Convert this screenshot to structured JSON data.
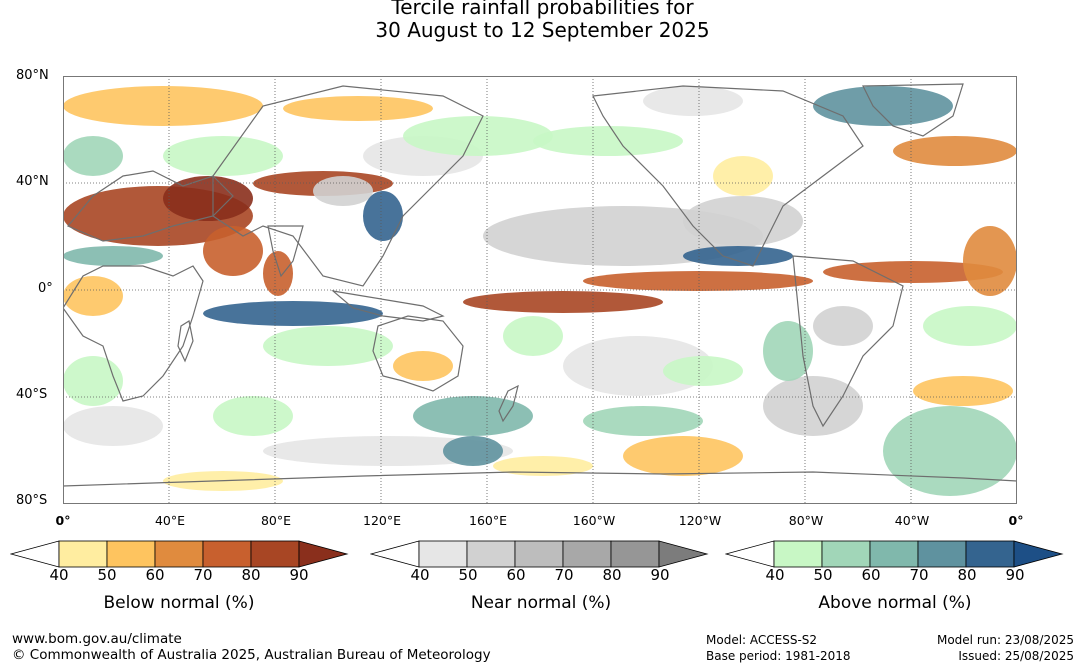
{
  "title": {
    "line1": "Tercile rainfall probabilities for",
    "line2": "30 August to 12 September 2025"
  },
  "map": {
    "lat_labels": [
      "80°N",
      "40°N",
      "0°",
      "40°S",
      "80°S"
    ],
    "lon_labels": [
      "0°",
      "40°E",
      "80°E",
      "120°E",
      "160°E",
      "160°W",
      "120°W",
      "80°W",
      "40°W",
      "0°"
    ],
    "graticule": "dotted every 40°",
    "notes": "coastlines in grey, probability shading over global equirectangular map"
  },
  "legend": {
    "below": {
      "name": "Below normal (%)",
      "ticks": [
        "40",
        "50",
        "60",
        "70",
        "80",
        "90"
      ],
      "colors": [
        "#ffffff",
        "#ffeda0",
        "#fec45f",
        "#e08b3e",
        "#c8602e",
        "#a84624",
        "#8a2f1c"
      ]
    },
    "near": {
      "name": "Near normal (%)",
      "ticks": [
        "40",
        "50",
        "60",
        "70",
        "80",
        "90"
      ],
      "colors": [
        "#ffffff",
        "#e6e6e6",
        "#d1d1d1",
        "#bdbdbd",
        "#a8a8a8",
        "#969696",
        "#7c7c7c"
      ]
    },
    "above": {
      "name": "Above normal (%)",
      "ticks": [
        "40",
        "50",
        "60",
        "70",
        "80",
        "90"
      ],
      "colors": [
        "#ffffff",
        "#c8f7c5",
        "#a1d6b8",
        "#80b8ac",
        "#5f929f",
        "#34648f",
        "#1d4f86"
      ]
    }
  },
  "footer": {
    "site": "www.bom.gov.au/climate",
    "copyright": "© Commonwealth of Australia 2025, Australian Bureau of Meteorology",
    "model": "Model: ACCESS-S2",
    "base_period": "Base period: 1981-2018",
    "model_run": "Model run: 23/08/2025",
    "issued": "Issued: 25/08/2025"
  }
}
